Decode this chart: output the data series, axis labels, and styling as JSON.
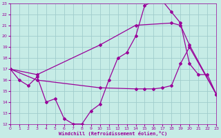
{
  "bg_color": "#c6ece6",
  "grid_color": "#a0cccc",
  "line_color": "#990099",
  "xlim": [
    0,
    23
  ],
  "ylim": [
    12,
    23
  ],
  "yticks": [
    12,
    13,
    14,
    15,
    16,
    17,
    18,
    19,
    20,
    21,
    22,
    23
  ],
  "xticks": [
    0,
    1,
    2,
    3,
    4,
    5,
    6,
    7,
    8,
    9,
    10,
    11,
    12,
    13,
    14,
    15,
    16,
    17,
    18,
    19,
    20,
    21,
    22,
    23
  ],
  "xlabel": "Windchill (Refroidissement éolien,°C)",
  "line1_x": [
    0,
    1,
    2,
    3,
    4,
    5,
    6,
    7,
    8,
    9,
    10,
    11,
    12,
    13,
    14,
    15,
    16,
    17,
    18,
    19,
    20,
    21,
    22,
    23
  ],
  "line1_y": [
    17,
    16,
    15.5,
    16.3,
    14,
    14.3,
    12.5,
    12,
    12,
    13.2,
    13.8,
    16,
    18,
    18.5,
    20,
    22.8,
    23.2,
    23.2,
    22.2,
    21.2,
    17.5,
    16.5,
    16.5,
    14.7
  ],
  "line2_x": [
    0,
    3,
    10,
    14,
    18,
    19,
    20,
    23
  ],
  "line2_y": [
    17,
    16.5,
    19.2,
    21.0,
    21.2,
    21.0,
    19.2,
    14.7
  ],
  "line3_x": [
    0,
    3,
    10,
    14,
    15,
    16,
    17,
    18,
    19,
    20,
    23
  ],
  "line3_y": [
    17,
    16.0,
    15.3,
    15.2,
    15.2,
    15.2,
    15.3,
    15.5,
    17.5,
    19.0,
    14.7
  ]
}
